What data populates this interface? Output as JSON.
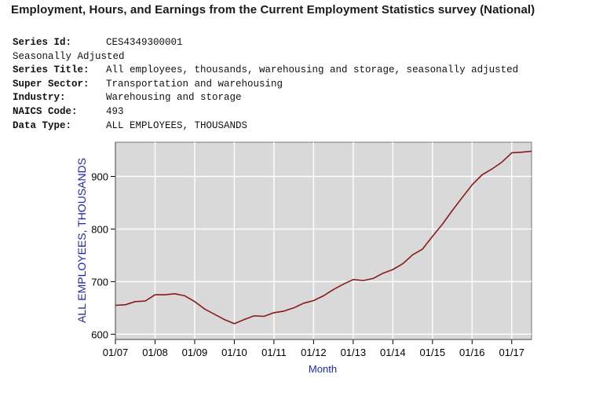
{
  "title": "Employment, Hours, and Earnings from the Current Employment Statistics survey (National)",
  "meta": {
    "series_id_label": "Series Id:",
    "series_id": "CES4349300001",
    "adjustment": "Seasonally Adjusted",
    "series_title_label": "Series Title:",
    "series_title": "All employees, thousands, warehousing and storage, seasonally adjusted",
    "super_sector_label": "Super Sector:",
    "super_sector": "Transportation and warehousing",
    "industry_label": "Industry:",
    "industry": "Warehousing and storage",
    "naics_label": "NAICS Code:",
    "naics": "493",
    "data_type_label": "Data Type:",
    "data_type": "ALL EMPLOYEES, THOUSANDS"
  },
  "colors": {
    "plot_background": "#d9d9d9",
    "grid": "#ffffff",
    "line": "#8b1a1a",
    "axis_label": "#1a2ab0"
  },
  "chart_data": {
    "type": "line",
    "title": "",
    "xlabel": "Month",
    "ylabel": "ALL EMPLOYEES, THOUSANDS",
    "xlim": [
      "2007-01",
      "2017-07"
    ],
    "ylim": [
      590,
      965
    ],
    "grid": true,
    "x_ticks": [
      "01/07",
      "01/08",
      "01/09",
      "01/10",
      "01/11",
      "01/12",
      "01/13",
      "01/14",
      "01/15",
      "01/16",
      "01/17"
    ],
    "y_ticks": [
      600,
      700,
      800,
      900
    ],
    "series": [
      {
        "points": [
          [
            "2007-01",
            655
          ],
          [
            "2007-04",
            656
          ],
          [
            "2007-07",
            662
          ],
          [
            "2007-10",
            663
          ],
          [
            "2008-01",
            675
          ],
          [
            "2008-04",
            675
          ],
          [
            "2008-07",
            677
          ],
          [
            "2008-10",
            673
          ],
          [
            "2009-01",
            662
          ],
          [
            "2009-04",
            648
          ],
          [
            "2009-07",
            638
          ],
          [
            "2009-10",
            628
          ],
          [
            "2010-01",
            620
          ],
          [
            "2010-04",
            628
          ],
          [
            "2010-07",
            635
          ],
          [
            "2010-10",
            634
          ],
          [
            "2011-01",
            641
          ],
          [
            "2011-04",
            644
          ],
          [
            "2011-07",
            650
          ],
          [
            "2011-10",
            659
          ],
          [
            "2012-01",
            664
          ],
          [
            "2012-04",
            673
          ],
          [
            "2012-07",
            685
          ],
          [
            "2012-10",
            695
          ],
          [
            "2013-01",
            704
          ],
          [
            "2013-04",
            702
          ],
          [
            "2013-07",
            706
          ],
          [
            "2013-10",
            716
          ],
          [
            "2014-01",
            723
          ],
          [
            "2014-04",
            734
          ],
          [
            "2014-07",
            751
          ],
          [
            "2014-10",
            762
          ],
          [
            "2015-01",
            786
          ],
          [
            "2015-04",
            809
          ],
          [
            "2015-07",
            835
          ],
          [
            "2015-10",
            860
          ],
          [
            "2016-01",
            884
          ],
          [
            "2016-04",
            903
          ],
          [
            "2016-07",
            914
          ],
          [
            "2016-10",
            927
          ],
          [
            "2017-01",
            945
          ],
          [
            "2017-04",
            946
          ],
          [
            "2017-07",
            948
          ]
        ]
      }
    ]
  }
}
